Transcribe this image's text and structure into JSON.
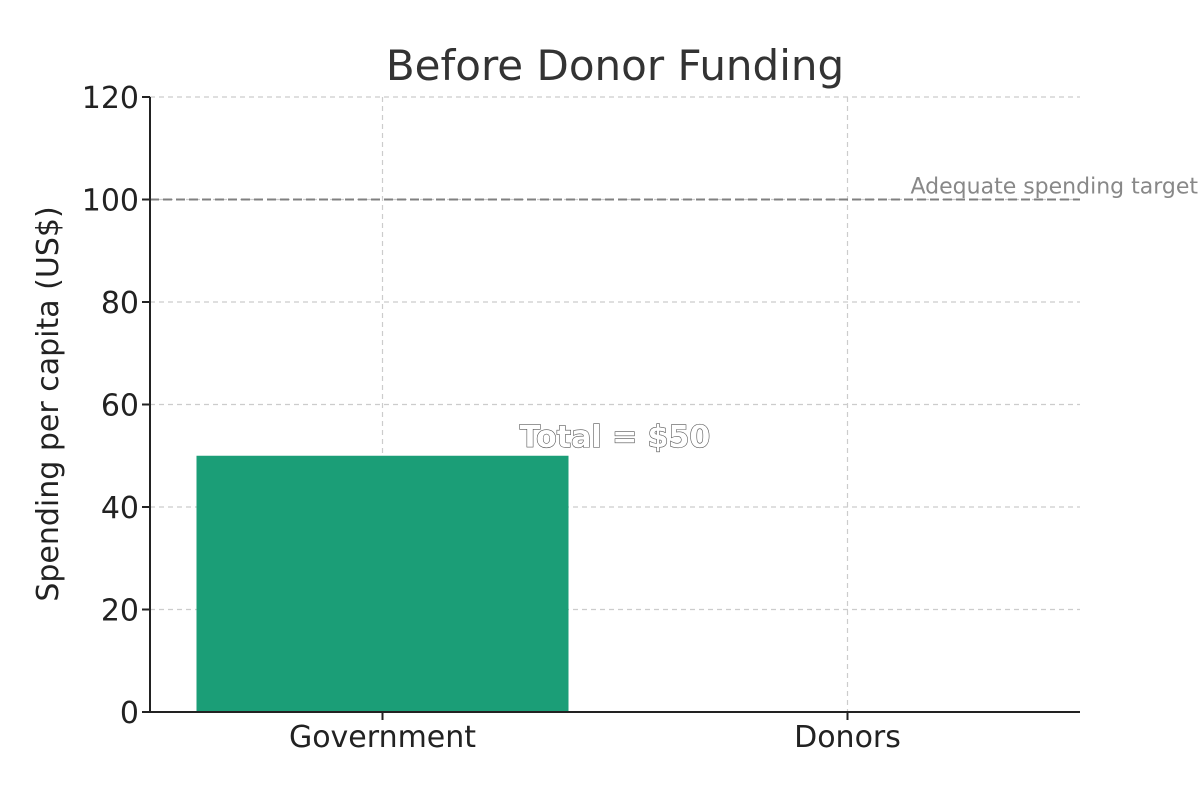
{
  "chart_data": {
    "type": "bar",
    "title": "Before Donor Funding",
    "xlabel": "",
    "ylabel": "Spending per capita (US$)",
    "categories": [
      "Government",
      "Donors"
    ],
    "series": [
      {
        "values": [
          50,
          0
        ]
      }
    ],
    "ylim": [
      0,
      120
    ],
    "yticks": [
      0,
      20,
      40,
      60,
      80,
      100,
      120
    ],
    "grid": true,
    "reference_line": {
      "value": 100,
      "label": "Adequate spending target"
    },
    "annotation": {
      "text": "Total = $50",
      "value": 50
    },
    "colors": {
      "bar": "#1b9e77",
      "reference_line": "#808080",
      "grid": "#cccccc",
      "axis": "#222222"
    }
  }
}
